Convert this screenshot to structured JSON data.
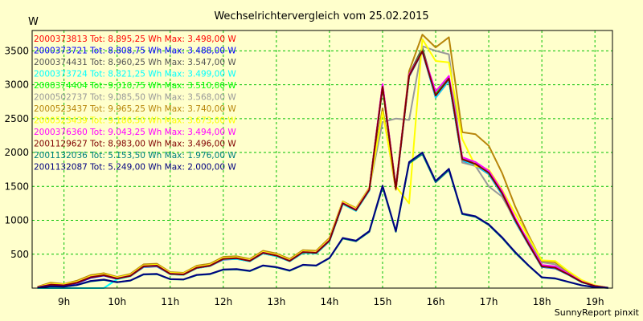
{
  "chart_data": {
    "type": "line",
    "title": "Wechselrichtervergleich vom 25.02.2015",
    "ylabel": "W",
    "xlabel": "",
    "footer": "SunnyReport pinxit",
    "grid": true,
    "legend_placement": "top-left",
    "ylim": [
      0,
      3800
    ],
    "y_ticks": [
      500,
      1000,
      1500,
      2000,
      2500,
      3000,
      3500
    ],
    "x_ticks": [
      "9h",
      "10h",
      "11h",
      "12h",
      "13h",
      "14h",
      "15h",
      "16h",
      "17h",
      "18h",
      "19h"
    ],
    "x_range_hours": [
      8.4,
      19.33
    ],
    "x": [
      8.5,
      8.75,
      9.0,
      9.25,
      9.5,
      9.75,
      10.0,
      10.25,
      10.5,
      10.75,
      11.0,
      11.25,
      11.5,
      11.75,
      12.0,
      12.25,
      12.5,
      12.75,
      13.0,
      13.25,
      13.5,
      13.75,
      14.0,
      14.25,
      14.5,
      14.75,
      15.0,
      15.25,
      15.5,
      15.75,
      16.0,
      16.25,
      16.5,
      16.75,
      17.0,
      17.25,
      17.5,
      17.75,
      18.0,
      18.25,
      18.5,
      18.75,
      19.0,
      19.25
    ],
    "series": [
      {
        "name": "2000373813 Tot: 8.895,25 Wh Max: 3.498,00 W",
        "color": "#ff0000",
        "values": [
          10,
          50,
          40,
          80,
          160,
          190,
          140,
          180,
          320,
          330,
          210,
          200,
          300,
          330,
          430,
          440,
          400,
          520,
          480,
          400,
          530,
          520,
          700,
          1250,
          1150,
          1450,
          2990,
          1480,
          3140,
          3498,
          2830,
          3080,
          1900,
          1830,
          1700,
          1400,
          1000,
          650,
          320,
          300,
          200,
          90,
          30,
          5
        ]
      },
      {
        "name": "2000373721 Tot: 8.808,75 Wh Max: 3.488,00 W",
        "color": "#0000ff",
        "values": [
          10,
          45,
          35,
          75,
          150,
          185,
          135,
          175,
          310,
          320,
          205,
          195,
          295,
          325,
          420,
          430,
          395,
          510,
          470,
          395,
          520,
          510,
          690,
          1240,
          1140,
          1440,
          2970,
          1460,
          3120,
          3488,
          2810,
          3060,
          1880,
          1810,
          1680,
          1380,
          980,
          640,
          310,
          290,
          195,
          85,
          28,
          5
        ]
      },
      {
        "name": "2000374431 Tot: 8.960,25 Wh Max: 3.547,00 W",
        "color": "#555555",
        "values": [
          10,
          55,
          45,
          85,
          165,
          195,
          145,
          185,
          325,
          335,
          215,
          205,
          305,
          335,
          435,
          445,
          405,
          525,
          485,
          405,
          535,
          525,
          710,
          1260,
          1160,
          1460,
          3000,
          1490,
          3150,
          3547,
          2850,
          3100,
          1910,
          1840,
          1710,
          1410,
          1010,
          660,
          330,
          310,
          205,
          92,
          30,
          5
        ]
      },
      {
        "name": "2000373724 Tot: 8.821,25 Wh Max: 3.499,00 W",
        "color": "#00ffff",
        "values": [
          0,
          0,
          0,
          0,
          0,
          0,
          130,
          175,
          315,
          325,
          205,
          195,
          295,
          325,
          425,
          430,
          395,
          510,
          470,
          395,
          520,
          510,
          690,
          1240,
          1140,
          1440,
          2975,
          1465,
          3125,
          3499,
          2815,
          3065,
          1885,
          1815,
          1685,
          1385,
          985,
          645,
          315,
          295,
          195,
          85,
          28,
          5
        ]
      },
      {
        "name": "2000374404 Tot: 9.010,75 Wh Max: 3.510,00 W",
        "color": "#00ff00",
        "values": [
          10,
          55,
          45,
          85,
          165,
          195,
          145,
          185,
          325,
          335,
          215,
          205,
          305,
          335,
          435,
          445,
          405,
          525,
          485,
          405,
          535,
          525,
          710,
          1260,
          1160,
          1460,
          2980,
          1480,
          3140,
          3510,
          2860,
          3110,
          1920,
          1850,
          1720,
          1420,
          1020,
          670,
          335,
          315,
          210,
          95,
          32,
          5
        ]
      },
      {
        "name": "2000502737 Tot: 9.085,50 Wh Max: 3.568,00 W",
        "color": "#999999",
        "values": [
          15,
          60,
          50,
          90,
          170,
          200,
          150,
          190,
          330,
          340,
          220,
          210,
          310,
          340,
          440,
          450,
          410,
          530,
          490,
          410,
          540,
          530,
          720,
          1270,
          1170,
          1470,
          2450,
          2500,
          2480,
          3568,
          3500,
          3450,
          1850,
          1800,
          1500,
          1350,
          1000,
          700,
          380,
          350,
          220,
          100,
          35,
          5
        ]
      },
      {
        "name": "2000523437 Tot: 9.965,25 Wh Max: 3.740,00 W",
        "color": "#b8860b",
        "values": [
          20,
          80,
          60,
          110,
          190,
          220,
          165,
          210,
          350,
          360,
          235,
          225,
          330,
          360,
          460,
          470,
          430,
          550,
          510,
          430,
          560,
          550,
          740,
          1280,
          1180,
          1480,
          2650,
          1450,
          3200,
          3740,
          3550,
          3700,
          2300,
          2270,
          2100,
          1700,
          1200,
          780,
          400,
          380,
          240,
          110,
          40,
          5
        ]
      },
      {
        "name": "2000523439 Tot: 9.186,50 Wh Max: 3.673,00 W",
        "color": "#ffff00",
        "values": [
          15,
          65,
          55,
          95,
          175,
          205,
          155,
          195,
          335,
          345,
          225,
          215,
          315,
          345,
          445,
          455,
          415,
          535,
          495,
          415,
          545,
          535,
          725,
          1270,
          1170,
          1470,
          2600,
          1500,
          1250,
          3673,
          3350,
          3330,
          2200,
          1800,
          1750,
          1450,
          1100,
          750,
          410,
          400,
          250,
          120,
          40,
          5
        ]
      },
      {
        "name": "2000376360 Tot: 9.043,25 Wh Max: 3.494,00 W",
        "color": "#ff00ff",
        "values": [
          12,
          52,
          42,
          82,
          162,
          192,
          142,
          182,
          322,
          332,
          212,
          202,
          302,
          332,
          432,
          442,
          402,
          522,
          482,
          402,
          532,
          522,
          705,
          1255,
          1155,
          1455,
          3010,
          1485,
          3145,
          3494,
          2900,
          3130,
          1930,
          1860,
          1730,
          1430,
          1030,
          675,
          340,
          320,
          212,
          96,
          32,
          5
        ]
      },
      {
        "name": "2001129627 Tot: 8.983,00 Wh Max: 3.496,00 W",
        "color": "#800000",
        "values": [
          10,
          50,
          40,
          80,
          160,
          190,
          140,
          180,
          320,
          330,
          210,
          200,
          300,
          330,
          430,
          440,
          400,
          520,
          480,
          400,
          530,
          520,
          700,
          1250,
          1150,
          1450,
          2970,
          1470,
          3130,
          3496,
          2840,
          3090,
          1900,
          1830,
          1700,
          1400,
          1000,
          650,
          320,
          300,
          200,
          90,
          30,
          5
        ]
      },
      {
        "name": "2001132036 Tot: 5.153,50 Wh Max: 1.976,00 W",
        "color": "#008080",
        "values": [
          5,
          25,
          20,
          45,
          100,
          120,
          85,
          110,
          200,
          205,
          130,
          125,
          190,
          205,
          270,
          275,
          250,
          330,
          305,
          255,
          340,
          330,
          440,
          730,
          690,
          830,
          1490,
          830,
          1840,
          1976,
          1560,
          1740,
          1090,
          1050,
          930,
          740,
          520,
          330,
          155,
          140,
          90,
          40,
          12,
          2
        ]
      },
      {
        "name": "2001132087 Tot: 5.249,00 Wh Max: 2.000,00 W",
        "color": "#000080",
        "values": [
          5,
          27,
          22,
          47,
          105,
          125,
          88,
          113,
          205,
          210,
          133,
          128,
          195,
          210,
          275,
          280,
          255,
          335,
          310,
          260,
          345,
          335,
          445,
          740,
          700,
          840,
          1510,
          840,
          1860,
          2000,
          1580,
          1760,
          1100,
          1060,
          940,
          750,
          530,
          335,
          160,
          145,
          92,
          42,
          13,
          2
        ]
      }
    ]
  }
}
